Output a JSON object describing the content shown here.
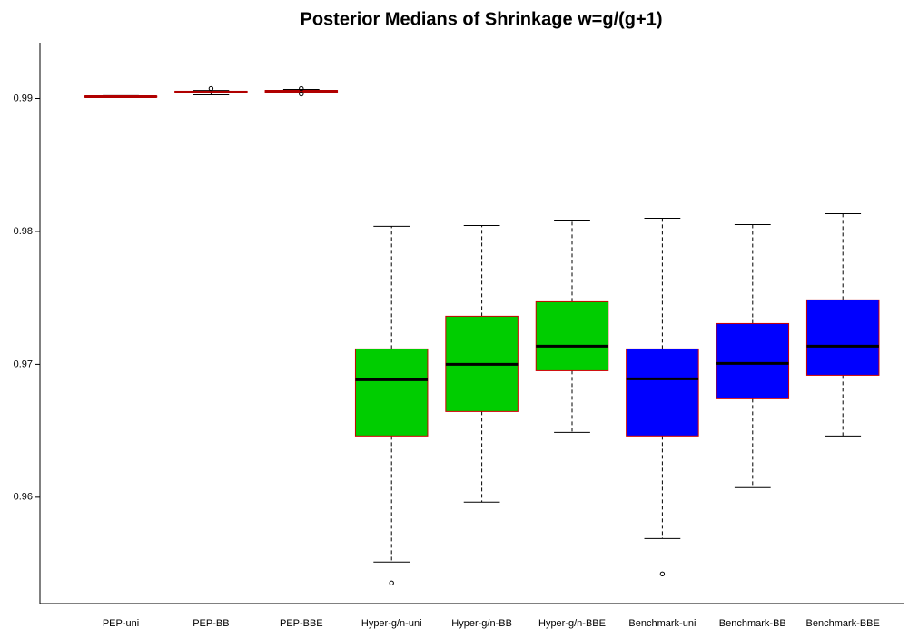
{
  "chart_data": {
    "type": "box",
    "title": "Posterior Medians of Shrinkage w=g/(g+1)",
    "categories": [
      "PEP-uni",
      "PEP-BB",
      "PEP-BBE",
      "Hyper-g/n-uni",
      "Hyper-g/n-BB",
      "Hyper-g/n-BBE",
      "Benchmark-uni",
      "Benchmark-BB",
      "Benchmark-BBE"
    ],
    "boxes": [
      {
        "low": 0.99007,
        "q1": 0.9901,
        "median": 0.99014,
        "q3": 0.99017,
        "high": 0.99021,
        "outliers": []
      },
      {
        "low": 0.99027,
        "q1": 0.99041,
        "median": 0.99048,
        "q3": 0.99055,
        "high": 0.99061,
        "outliers": [
          0.99075
        ]
      },
      {
        "low": 0.99048,
        "q1": 0.99048,
        "median": 0.99055,
        "q3": 0.99061,
        "high": 0.99068,
        "outliers": [
          0.99075,
          0.99034
        ]
      },
      {
        "low": 0.95512,
        "q1": 0.96461,
        "median": 0.96884,
        "q3": 0.97116,
        "high": 0.98038,
        "outliers": [
          0.95355
        ]
      },
      {
        "low": 0.95963,
        "q1": 0.96645,
        "median": 0.97,
        "q3": 0.97362,
        "high": 0.98044,
        "outliers": []
      },
      {
        "low": 0.96488,
        "q1": 0.96952,
        "median": 0.97137,
        "q3": 0.97471,
        "high": 0.98085,
        "outliers": []
      },
      {
        "low": 0.95689,
        "q1": 0.96461,
        "median": 0.96891,
        "q3": 0.97116,
        "high": 0.98099,
        "outliers": [
          0.95423
        ]
      },
      {
        "low": 0.96072,
        "q1": 0.96741,
        "median": 0.97007,
        "q3": 0.97307,
        "high": 0.98051,
        "outliers": []
      },
      {
        "low": 0.96461,
        "q1": 0.96918,
        "median": 0.97137,
        "q3": 0.97485,
        "high": 0.98133,
        "outliers": []
      }
    ],
    "colors": [
      "#bebebe",
      "#bebebe",
      "#bebebe",
      "#00cd00",
      "#00cd00",
      "#00cd00",
      "#0000ff",
      "#0000ff",
      "#0000ff"
    ],
    "median_colors": [
      "#b00000",
      "#b00000",
      "#b00000",
      "#000000",
      "#000000",
      "#000000",
      "#000000",
      "#000000",
      "#000000"
    ],
    "border_color": "#cc0000",
    "ylim": [
      0.952,
      0.9942
    ],
    "yticks": [
      0.96,
      0.97,
      0.98,
      0.99
    ]
  }
}
